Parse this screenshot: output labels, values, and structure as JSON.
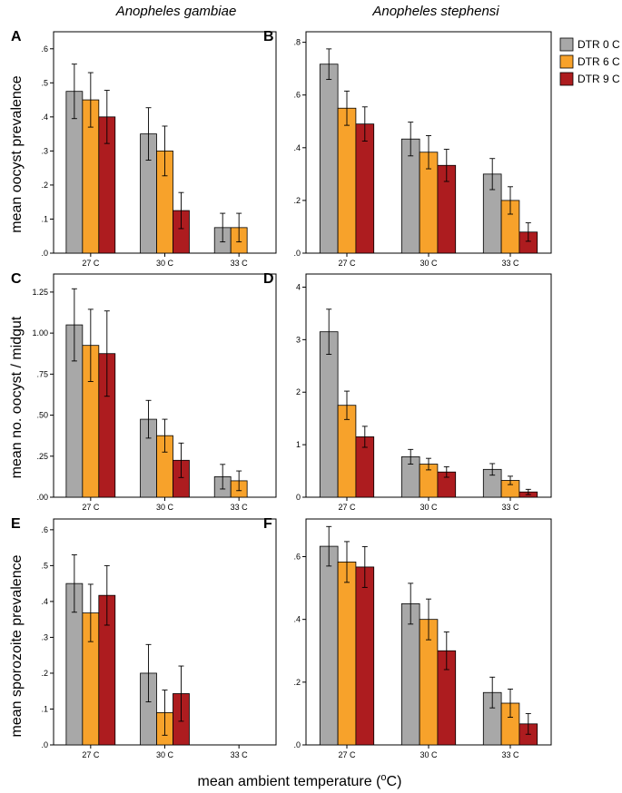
{
  "figure": {
    "col_titles": [
      "Anopheles gambiae",
      "Anopheles stephensi"
    ],
    "xlabel_main": "mean ambient temperature (",
    "xlabel_super": "o",
    "xlabel_end": "C)",
    "ylabels": [
      "mean oocyst prevalence",
      "mean no. oocyst / midgut",
      "mean sporozoite prevalence"
    ]
  },
  "legend": {
    "items": [
      {
        "label": "DTR 0 C",
        "color": "#a8a8a8"
      },
      {
        "label": "DTR 6 C",
        "color": "#f7a22b"
      },
      {
        "label": "DTR 9 C",
        "color": "#ad1c1f"
      }
    ]
  },
  "chart_data": [
    {
      "panel": "A",
      "type": "bar",
      "categories": [
        "27 C",
        "30 C",
        "33 C"
      ],
      "ylim": [
        0,
        0.65
      ],
      "yticks": [
        0,
        0.1,
        0.2,
        0.3,
        0.4,
        0.5,
        0.6
      ],
      "ytick_labels": [
        ".0",
        ".1",
        ".2",
        ".3",
        ".4",
        ".5",
        ".6"
      ],
      "series": [
        {
          "name": "DTR 0 C",
          "values": [
            0.475,
            0.35,
            0.075
          ],
          "err": [
            0.08,
            0.077,
            0.042
          ]
        },
        {
          "name": "DTR 6 C",
          "values": [
            0.45,
            0.3,
            0.075
          ],
          "err": [
            0.08,
            0.073,
            0.042
          ]
        },
        {
          "name": "DTR 9 C",
          "values": [
            0.4,
            0.125,
            0
          ],
          "err": [
            0.078,
            0.053,
            0
          ]
        }
      ]
    },
    {
      "panel": "B",
      "type": "bar",
      "categories": [
        "27 C",
        "30 C",
        "33 C"
      ],
      "ylim": [
        0,
        0.84
      ],
      "yticks": [
        0,
        0.2,
        0.4,
        0.6,
        0.8
      ],
      "ytick_labels": [
        ".0",
        ".2",
        ".4",
        ".6",
        ".8"
      ],
      "series": [
        {
          "name": "DTR 0 C",
          "values": [
            0.717,
            0.433,
            0.3
          ],
          "err": [
            0.058,
            0.064,
            0.059
          ]
        },
        {
          "name": "DTR 6 C",
          "values": [
            0.55,
            0.383,
            0.2
          ],
          "err": [
            0.065,
            0.063,
            0.052
          ]
        },
        {
          "name": "DTR 9 C",
          "values": [
            0.49,
            0.333,
            0.08
          ],
          "err": [
            0.065,
            0.061,
            0.035
          ]
        }
      ]
    },
    {
      "panel": "C",
      "type": "bar",
      "categories": [
        "27 C",
        "30 C",
        "33 C"
      ],
      "ylim": [
        0,
        1.36
      ],
      "yticks": [
        0,
        0.25,
        0.5,
        0.75,
        1.0,
        1.25
      ],
      "ytick_labels": [
        ".00",
        ".25",
        ".50",
        ".75",
        "1.00",
        "1.25"
      ],
      "series": [
        {
          "name": "DTR 0 C",
          "values": [
            1.05,
            0.475,
            0.125
          ],
          "err": [
            0.22,
            0.115,
            0.075
          ]
        },
        {
          "name": "DTR 6 C",
          "values": [
            0.925,
            0.375,
            0.1
          ],
          "err": [
            0.22,
            0.1,
            0.06
          ]
        },
        {
          "name": "DTR 9 C",
          "values": [
            0.875,
            0.225,
            0
          ],
          "err": [
            0.26,
            0.105,
            0
          ]
        }
      ]
    },
    {
      "panel": "D",
      "type": "bar",
      "categories": [
        "27 C",
        "30 C",
        "33 C"
      ],
      "ylim": [
        0,
        4.25
      ],
      "yticks": [
        0,
        1,
        2,
        3,
        4
      ],
      "ytick_labels": [
        "0",
        "1",
        "2",
        "3",
        "4"
      ],
      "series": [
        {
          "name": "DTR 0 C",
          "values": [
            3.15,
            0.77,
            0.53
          ],
          "err": [
            0.43,
            0.14,
            0.11
          ]
        },
        {
          "name": "DTR 6 C",
          "values": [
            1.75,
            0.63,
            0.32
          ],
          "err": [
            0.27,
            0.11,
            0.08
          ]
        },
        {
          "name": "DTR 9 C",
          "values": [
            1.15,
            0.48,
            0.1
          ],
          "err": [
            0.2,
            0.1,
            0.05
          ]
        }
      ]
    },
    {
      "panel": "E",
      "type": "bar",
      "categories": [
        "27 C",
        "30 C",
        "33 C"
      ],
      "ylim": [
        0,
        0.63
      ],
      "yticks": [
        0,
        0.1,
        0.2,
        0.3,
        0.4,
        0.5,
        0.6
      ],
      "ytick_labels": [
        ".0",
        ".1",
        ".2",
        ".3",
        ".4",
        ".5",
        ".6"
      ],
      "series": [
        {
          "name": "DTR 0 C",
          "values": [
            0.45,
            0.2,
            0
          ],
          "err": [
            0.08,
            0.08,
            0
          ]
        },
        {
          "name": "DTR 6 C",
          "values": [
            0.368,
            0.09,
            0
          ],
          "err": [
            0.08,
            0.063,
            0
          ]
        },
        {
          "name": "DTR 9 C",
          "values": [
            0.417,
            0.143,
            0
          ],
          "err": [
            0.083,
            0.077,
            0
          ]
        }
      ]
    },
    {
      "panel": "F",
      "type": "bar",
      "categories": [
        "27 C",
        "30 C",
        "33 C"
      ],
      "ylim": [
        0,
        0.72
      ],
      "yticks": [
        0,
        0.2,
        0.4,
        0.6
      ],
      "ytick_labels": [
        ".0",
        ".2",
        ".4",
        ".6"
      ],
      "series": [
        {
          "name": "DTR 0 C",
          "values": [
            0.633,
            0.45,
            0.167
          ],
          "err": [
            0.063,
            0.065,
            0.049
          ]
        },
        {
          "name": "DTR 6 C",
          "values": [
            0.583,
            0.4,
            0.133
          ],
          "err": [
            0.065,
            0.065,
            0.045
          ]
        },
        {
          "name": "DTR 9 C",
          "values": [
            0.567,
            0.3,
            0.067
          ],
          "err": [
            0.065,
            0.06,
            0.033
          ]
        }
      ]
    }
  ]
}
